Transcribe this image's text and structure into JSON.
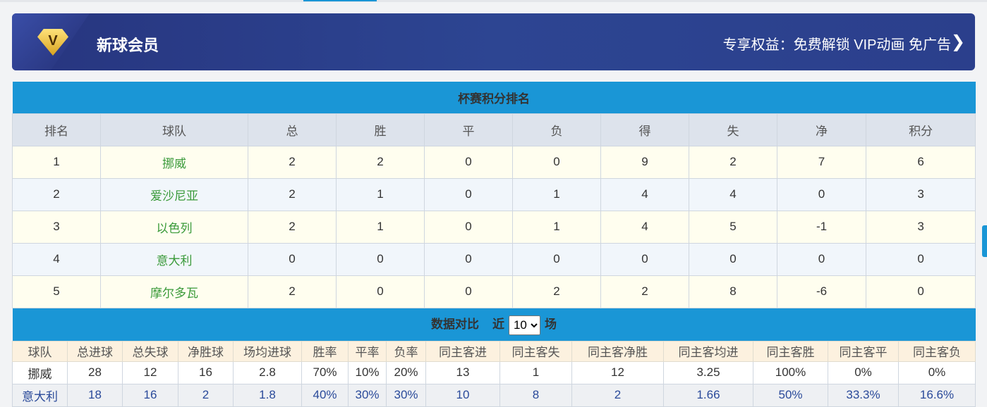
{
  "banner": {
    "title": "新球会员",
    "benefits": "专享权益：免费解锁 VIP动画 免广告",
    "badge": "V"
  },
  "standings": {
    "title": "杯赛积分排名",
    "headers": [
      "排名",
      "球队",
      "总",
      "胜",
      "平",
      "负",
      "得",
      "失",
      "净",
      "积分"
    ],
    "rows": [
      [
        "1",
        "挪威",
        "2",
        "2",
        "0",
        "0",
        "9",
        "2",
        "7",
        "6"
      ],
      [
        "2",
        "爱沙尼亚",
        "2",
        "1",
        "0",
        "1",
        "4",
        "4",
        "0",
        "3"
      ],
      [
        "3",
        "以色列",
        "2",
        "1",
        "0",
        "1",
        "4",
        "5",
        "-1",
        "3"
      ],
      [
        "4",
        "意大利",
        "0",
        "0",
        "0",
        "0",
        "0",
        "0",
        "0",
        "0"
      ],
      [
        "5",
        "摩尔多瓦",
        "2",
        "0",
        "0",
        "2",
        "2",
        "8",
        "-6",
        "0"
      ]
    ]
  },
  "compare": {
    "title": "数据对比",
    "near": "近",
    "unit": "场",
    "selected": "10",
    "headers": [
      "球队",
      "总进球",
      "总失球",
      "净胜球",
      "场均进球",
      "胜率",
      "平率",
      "负率",
      "同主客进",
      "同主客失",
      "同主客净胜",
      "同主客均进",
      "同主客胜",
      "同主客平",
      "同主客负"
    ],
    "rows": [
      [
        "挪威",
        "28",
        "12",
        "16",
        "2.8",
        "70%",
        "10%",
        "20%",
        "13",
        "1",
        "12",
        "3.25",
        "100%",
        "0%",
        "0%"
      ],
      [
        "意大利",
        "18",
        "16",
        "2",
        "1.8",
        "40%",
        "30%",
        "30%",
        "10",
        "8",
        "2",
        "1.66",
        "50%",
        "33.3%",
        "16.6%"
      ]
    ]
  }
}
